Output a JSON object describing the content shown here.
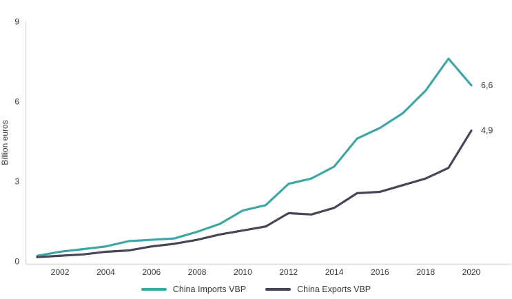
{
  "chart": {
    "text_color": "#383838",
    "axis_color": "#d9d9d9",
    "background": "#ffffff"
  },
  "legend": {
    "items": [
      {
        "label": "China Imports VBP",
        "color": "#3fa7a3"
      },
      {
        "label": "China Exports VBP",
        "color": "#4a4458"
      }
    ]
  },
  "chart_data": {
    "type": "line",
    "title": "",
    "xlabel": "",
    "ylabel": "Billion euros",
    "ylim": [
      0,
      9
    ],
    "yticks": [
      0,
      3,
      6,
      9
    ],
    "xticks": [
      2002,
      2004,
      2006,
      2008,
      2010,
      2012,
      2014,
      2016,
      2018,
      2020
    ],
    "grid": false,
    "legend_position": "bottom",
    "decimal_separator": ",",
    "x": [
      2001,
      2002,
      2003,
      2004,
      2005,
      2006,
      2007,
      2008,
      2009,
      2010,
      2011,
      2012,
      2013,
      2014,
      2015,
      2016,
      2017,
      2018,
      2019,
      2020
    ],
    "series": [
      {
        "name": "China Imports VBP",
        "color": "#3fa7a3",
        "values": [
          0.2,
          0.35,
          0.45,
          0.55,
          0.75,
          0.8,
          0.85,
          1.1,
          1.4,
          1.9,
          2.1,
          2.9,
          3.1,
          3.55,
          4.6,
          5.0,
          5.55,
          6.4,
          7.6,
          6.6
        ],
        "end_label": "6,6"
      },
      {
        "name": "China Exports VBP",
        "color": "#4a4458",
        "values": [
          0.15,
          0.2,
          0.25,
          0.35,
          0.4,
          0.55,
          0.65,
          0.8,
          1.0,
          1.15,
          1.3,
          1.8,
          1.75,
          2.0,
          2.55,
          2.6,
          2.85,
          3.1,
          3.5,
          4.9
        ],
        "end_label": "4,9"
      }
    ]
  }
}
